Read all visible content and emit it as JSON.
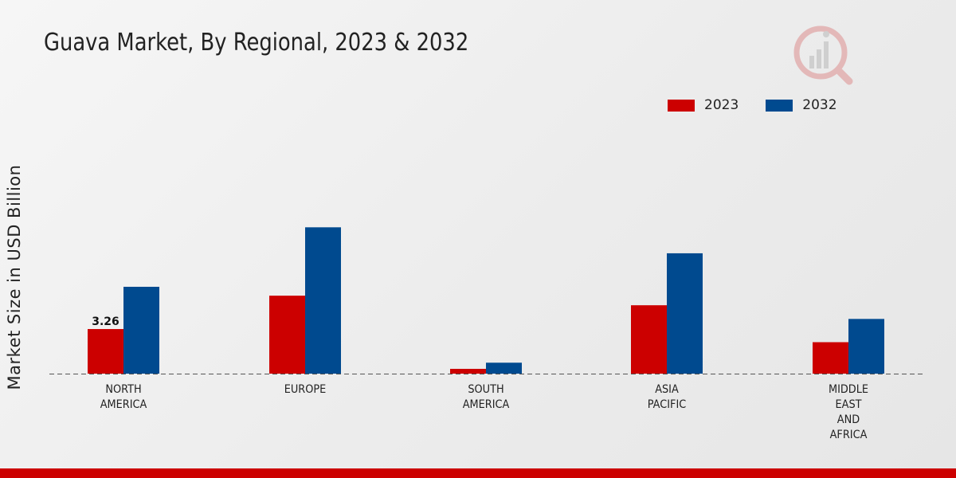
{
  "chart_data": {
    "type": "bar",
    "title": "Guava Market, By Regional, 2023 & 2032",
    "xlabel": "",
    "ylabel": "Market Size in USD Billion",
    "categories": [
      "NORTH\nAMERICA",
      "EUROPE",
      "SOUTH\nAMERICA",
      "ASIA\nPACIFIC",
      "MIDDLE\nEAST\nAND\nAFRICA"
    ],
    "series": [
      {
        "name": "2023",
        "values": [
          3.26,
          5.7,
          0.35,
          5.0,
          2.3
        ]
      },
      {
        "name": "2032",
        "values": [
          6.35,
          10.7,
          0.8,
          8.8,
          4.0
        ]
      }
    ],
    "data_labels": [
      {
        "series": "2023",
        "category_index": 0,
        "text": "3.26"
      }
    ],
    "ylim": [
      0,
      18
    ],
    "grid": false,
    "legend_position": "top-right"
  },
  "colors": {
    "series_2023": "#cc0000",
    "series_2032": "#004a8f",
    "baseline": "#555555",
    "footer": "#cc0000"
  },
  "logo": {
    "icon": "market-research-logo-icon"
  }
}
